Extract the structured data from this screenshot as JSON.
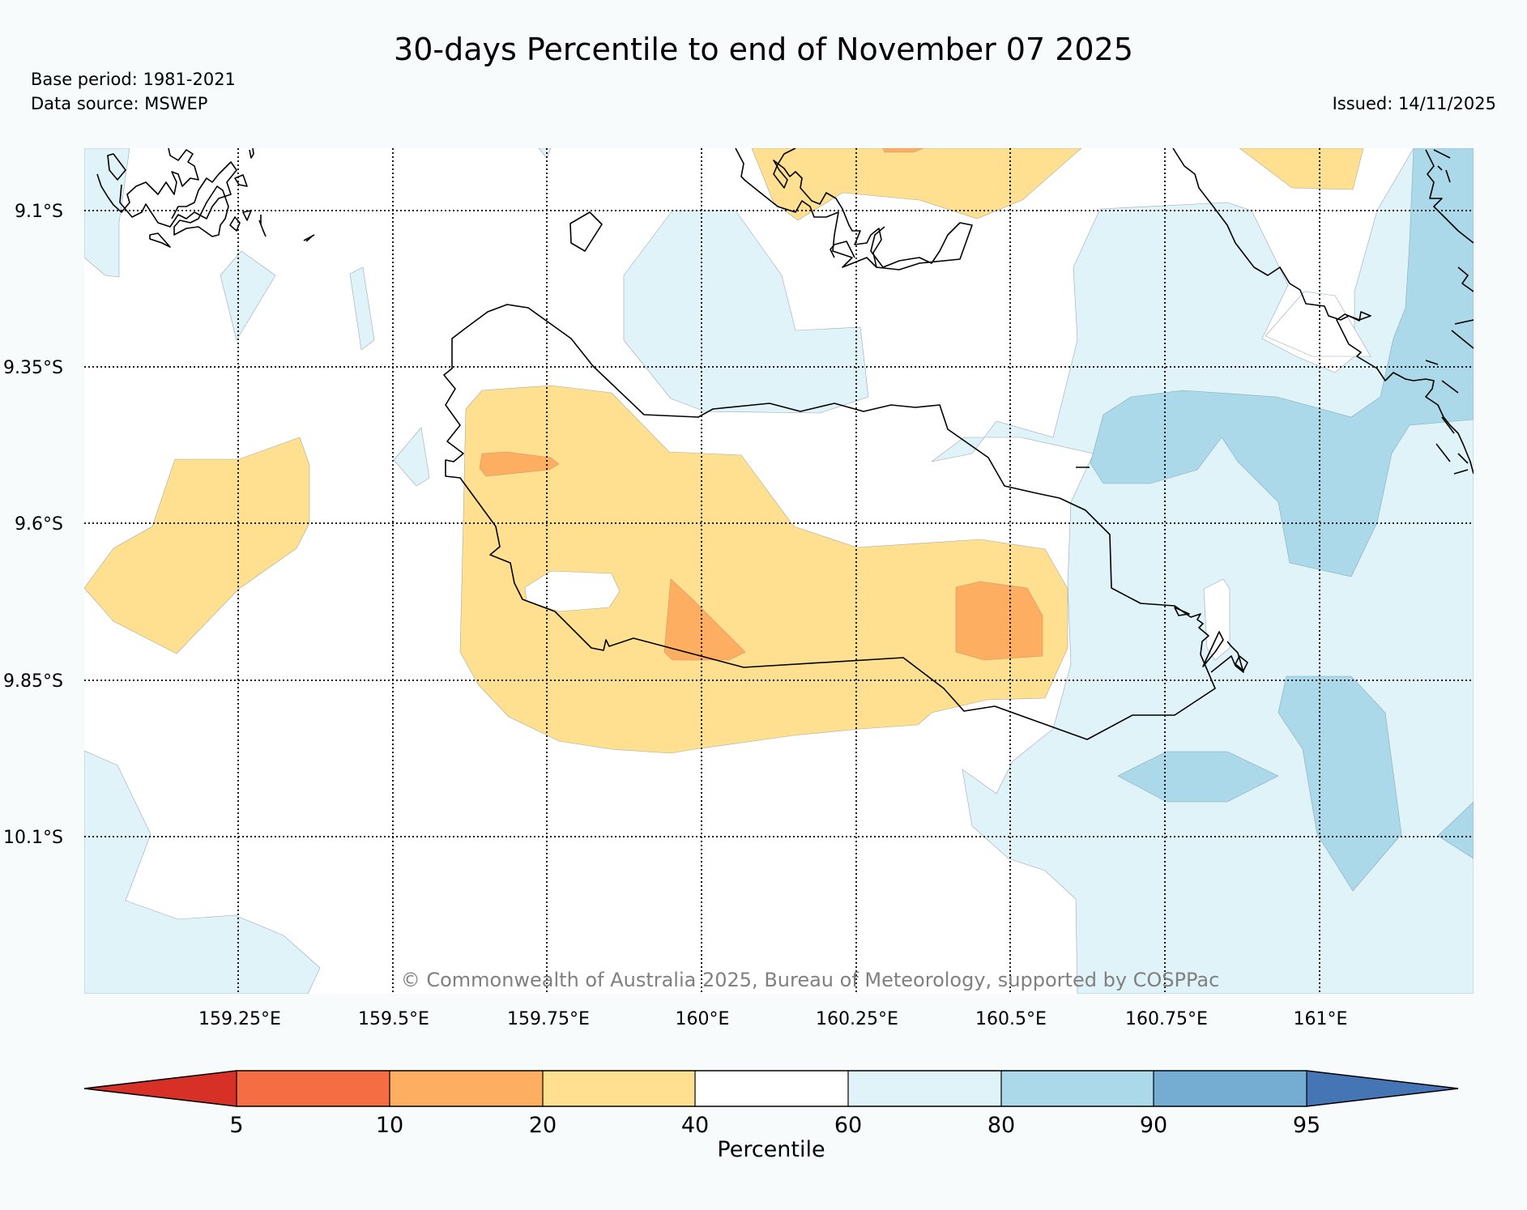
{
  "title": "30-days Percentile to end of November 07 2025",
  "base_period": "Base period: 1981-2021",
  "data_source": "Data source: MSWEP",
  "issued": "Issued: 14/11/2025",
  "copyright": "© Commonwealth of Australia 2025, Bureau of Meteorology, supported by COSPPac",
  "map": {
    "lon_ticks": [
      "159.25°E",
      "159.5°E",
      "159.75°E",
      "160°E",
      "160.25°E",
      "160.5°E",
      "160.75°E",
      "161°E"
    ],
    "lat_ticks": [
      "9.1°S",
      "9.35°S",
      "9.6°S",
      "9.85°S",
      "10.1°S"
    ],
    "lon_values": [
      159.25,
      159.5,
      159.75,
      160.0,
      160.25,
      160.5,
      160.75,
      161.0
    ],
    "lat_values": [
      -9.1,
      -9.35,
      -9.6,
      -9.85,
      -10.1
    ]
  },
  "colorbar": {
    "label": "Percentile",
    "ticks": [
      "5",
      "10",
      "20",
      "40",
      "60",
      "80",
      "90",
      "95"
    ],
    "colors": [
      "#d73027",
      "#f46d43",
      "#fdae61",
      "#fee090",
      "#ffffff",
      "#e0f3f8",
      "#abd9e9",
      "#74add1",
      "#4575b4"
    ]
  },
  "colors": {
    "band_20_40": "#fee090",
    "band_10_20": "#fdae61",
    "band_40_60": "#ffffff",
    "band_60_80": "#e0f3f8",
    "band_80_90": "#abd9e9",
    "background": "#f7fbfc"
  }
}
